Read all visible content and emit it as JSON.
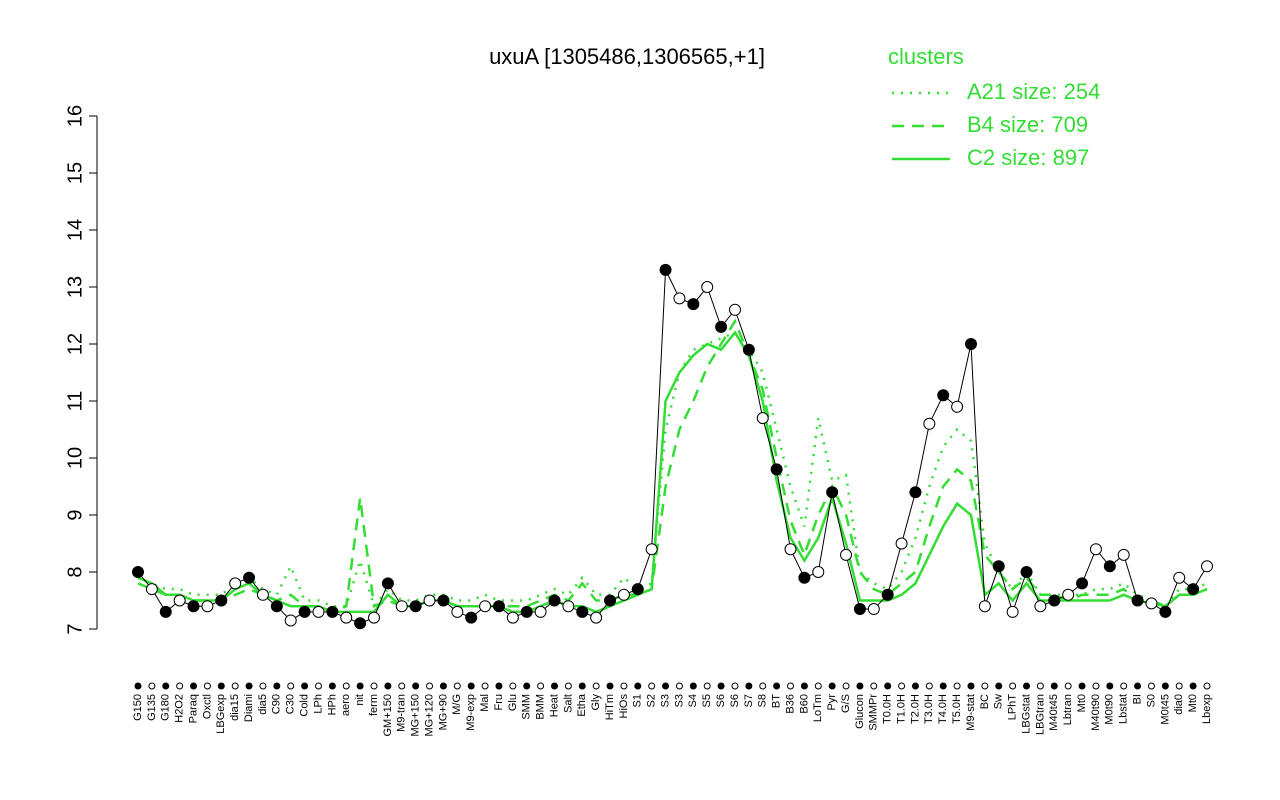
{
  "chart_data": {
    "type": "line",
    "title": "uxuA [1305486,1306565,+1]",
    "legend_title": "clusters",
    "legend_position": "top-right",
    "categories": [
      "G150",
      "G135",
      "G180",
      "H2O2",
      "Paraq",
      "Oxctl",
      "LBGexp",
      "dia15",
      "Diami",
      "dia5",
      "C90",
      "C30",
      "Cold",
      "LPh",
      "HPh",
      "aero",
      "nit",
      "ferm",
      "GM+150",
      "M9-tran",
      "MG+150",
      "MG+120",
      "MG+90",
      "M/G",
      "M9-exp",
      "Mal",
      "Fru",
      "Glu",
      "SMM",
      "BMM",
      "Heat",
      "Salt",
      "Etha",
      "Gly",
      "HiTm",
      "HiOs",
      "S1",
      "S2",
      "S3",
      "S3",
      "S4",
      "S5",
      "S6",
      "S6",
      "S7",
      "S8",
      "BT",
      "B36",
      "B60",
      "LoTm",
      "Pyr",
      "G/S",
      "Glucon",
      "SMMPr",
      "T0.0H",
      "T1.0H",
      "T2.0H",
      "T3.0H",
      "T4.0H",
      "T5.0H",
      "M9-stat",
      "BC",
      "Sw",
      "LPhT",
      "LBGstat",
      "LBGtran",
      "M40t45",
      "Lbtran",
      "Mt0",
      "M40t90",
      "M0t90",
      "Lbstat",
      "BI",
      "S0",
      "M0t45",
      "dia0",
      "Mt0",
      "Lbexp"
    ],
    "values": [
      8.0,
      7.7,
      7.3,
      7.5,
      7.4,
      7.4,
      7.5,
      7.8,
      7.9,
      7.6,
      7.4,
      7.15,
      7.3,
      7.3,
      7.3,
      7.2,
      7.1,
      7.2,
      7.8,
      7.4,
      7.4,
      7.5,
      7.5,
      7.3,
      7.2,
      7.4,
      7.4,
      7.2,
      7.3,
      7.3,
      7.5,
      7.4,
      7.3,
      7.2,
      7.5,
      7.6,
      7.7,
      8.4,
      13.3,
      12.8,
      12.7,
      13.0,
      12.3,
      12.6,
      11.9,
      10.7,
      9.8,
      8.4,
      7.9,
      8.0,
      9.4,
      8.3,
      7.35,
      7.35,
      7.6,
      8.5,
      9.4,
      10.6,
      11.1,
      10.9,
      12.0,
      7.4,
      8.1,
      7.3,
      8.0,
      7.4,
      7.5,
      7.6,
      7.8,
      8.4,
      8.1,
      8.3,
      7.5,
      7.45,
      7.3,
      7.9,
      7.7,
      8.1
    ],
    "series": [
      {
        "name": "A21 size: 254",
        "color": "#33dd33",
        "dash": "dotted",
        "values": [
          7.9,
          7.8,
          7.7,
          7.7,
          7.6,
          7.6,
          7.6,
          7.8,
          7.9,
          7.7,
          7.6,
          8.1,
          7.5,
          7.5,
          7.4,
          7.4,
          8.2,
          7.4,
          7.7,
          7.5,
          7.5,
          7.6,
          7.6,
          7.5,
          7.5,
          7.6,
          7.5,
          7.5,
          7.5,
          7.6,
          7.7,
          7.6,
          7.9,
          7.6,
          7.6,
          7.9,
          7.7,
          7.8,
          10.5,
          11.5,
          11.9,
          12.0,
          12.1,
          12.2,
          11.9,
          11.5,
          10.5,
          9.5,
          8.8,
          10.7,
          9.6,
          9.7,
          8.0,
          7.8,
          7.7,
          8.0,
          8.6,
          9.5,
          10.2,
          10.5,
          10.3,
          8.5,
          8.0,
          7.7,
          8.0,
          7.6,
          7.6,
          7.6,
          7.6,
          7.7,
          7.7,
          7.8,
          7.6,
          7.5,
          7.4,
          7.7,
          7.7,
          7.8
        ]
      },
      {
        "name": "B4 size: 709",
        "color": "#33dd33",
        "dash": "dashed",
        "values": [
          7.8,
          7.7,
          7.6,
          7.6,
          7.5,
          7.5,
          7.5,
          7.6,
          7.7,
          7.6,
          7.5,
          7.6,
          7.4,
          7.4,
          7.3,
          7.4,
          9.3,
          7.4,
          7.5,
          7.4,
          7.4,
          7.5,
          7.5,
          7.4,
          7.4,
          7.4,
          7.4,
          7.4,
          7.4,
          7.5,
          7.6,
          7.5,
          7.8,
          7.5,
          7.5,
          7.6,
          7.6,
          7.7,
          9.5,
          10.5,
          11.0,
          11.6,
          12.0,
          12.4,
          11.8,
          11.2,
          10.0,
          8.9,
          8.3,
          9.0,
          9.5,
          9.0,
          8.0,
          7.7,
          7.6,
          7.8,
          8.0,
          8.8,
          9.5,
          9.8,
          9.6,
          8.3,
          8.0,
          7.7,
          7.9,
          7.6,
          7.6,
          7.5,
          7.6,
          7.6,
          7.6,
          7.7,
          7.5,
          7.5,
          7.4,
          7.6,
          7.6,
          7.7
        ]
      },
      {
        "name": "C2 size: 897",
        "color": "#33dd33",
        "dash": "solid",
        "values": [
          7.9,
          7.8,
          7.6,
          7.6,
          7.5,
          7.5,
          7.5,
          7.7,
          7.8,
          7.6,
          7.5,
          7.4,
          7.4,
          7.4,
          7.3,
          7.3,
          7.3,
          7.3,
          7.6,
          7.4,
          7.4,
          7.5,
          7.5,
          7.4,
          7.4,
          7.4,
          7.4,
          7.3,
          7.3,
          7.4,
          7.5,
          7.4,
          7.4,
          7.3,
          7.4,
          7.5,
          7.6,
          7.7,
          11.0,
          11.5,
          11.8,
          12.0,
          11.9,
          12.2,
          11.8,
          11.0,
          9.6,
          8.6,
          8.2,
          8.6,
          9.3,
          8.5,
          7.5,
          7.5,
          7.5,
          7.6,
          7.8,
          8.3,
          8.8,
          9.2,
          9.0,
          7.6,
          7.8,
          7.5,
          7.8,
          7.5,
          7.5,
          7.5,
          7.5,
          7.5,
          7.5,
          7.6,
          7.5,
          7.45,
          7.4,
          7.6,
          7.6,
          7.7
        ]
      }
    ],
    "ylim": [
      7,
      16
    ],
    "yticks": [
      7,
      8,
      9,
      10,
      11,
      12,
      13,
      14,
      15,
      16
    ]
  }
}
